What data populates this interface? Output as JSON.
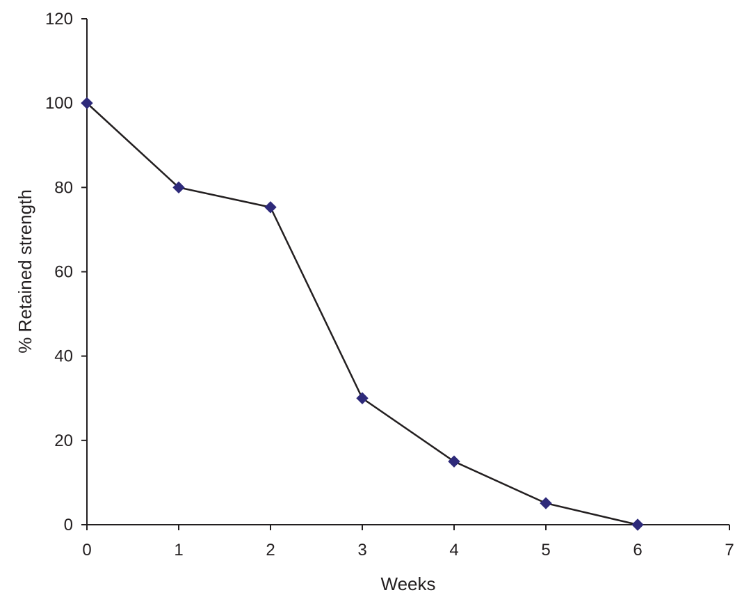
{
  "chart_data": {
    "type": "line",
    "title": "",
    "xlabel": "Weeks",
    "ylabel": "% Retained strength",
    "xlim": [
      0,
      7
    ],
    "ylim": [
      0,
      120
    ],
    "xticks": [
      "0",
      "1",
      "2",
      "3",
      "4",
      "5",
      "6",
      "7"
    ],
    "yticks": [
      "0",
      "20",
      "40",
      "60",
      "80",
      "100",
      "120"
    ],
    "grid": false,
    "legend": "none",
    "series": [
      {
        "x": [
          0,
          1,
          2,
          3,
          4,
          5,
          6
        ],
        "y": [
          100,
          80,
          75.3,
          30,
          15,
          5.1,
          0
        ],
        "marker": "diamond",
        "line_color": "#231f20",
        "marker_color": "#2e2a7a"
      }
    ]
  }
}
